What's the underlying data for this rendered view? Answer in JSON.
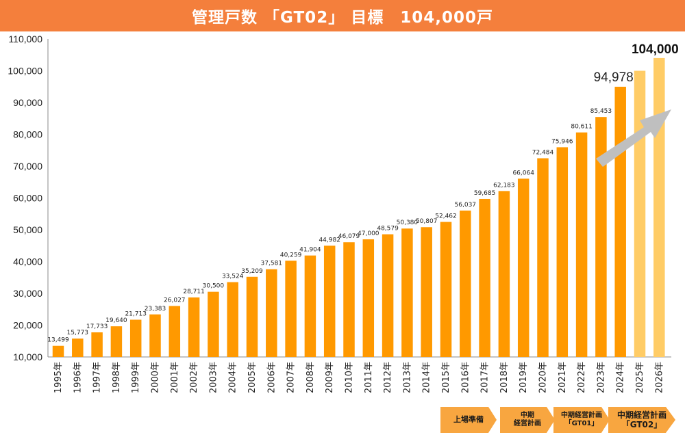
{
  "header": {
    "title": "管理戸数 「GT02」 目標　104,000戸"
  },
  "colors": {
    "title_bg": "#F47F3C",
    "bar_actual": "#FF9900",
    "bar_target": "#FFCC66",
    "arrow": "#BFBFBF",
    "phase_arrow": "#F8A640"
  },
  "chart_data": {
    "type": "bar",
    "title": "",
    "xlabel": "",
    "ylabel": "",
    "ylim": [
      10000,
      110000
    ],
    "yticks": [
      "10,000",
      "20,000",
      "30,000",
      "40,000",
      "50,000",
      "60,000",
      "70,000",
      "80,000",
      "90,000",
      "100,000",
      "110,000"
    ],
    "grid": false,
    "categories": [
      "1995年",
      "1996年",
      "1997年",
      "1998年",
      "1999年",
      "2000年",
      "2001年",
      "2002年",
      "2003年",
      "2004年",
      "2005年",
      "2006年",
      "2007年",
      "2008年",
      "2009年",
      "2010年",
      "2011年",
      "2012年",
      "2013年",
      "2014年",
      "2015年",
      "2016年",
      "2017年",
      "2018年",
      "2019年",
      "2020年",
      "2021年",
      "2022年",
      "2023年",
      "2024年",
      "2025年",
      "2026年"
    ],
    "values": [
      13499,
      15773,
      17733,
      19640,
      21713,
      23383,
      26027,
      28711,
      30500,
      33524,
      35209,
      37581,
      40259,
      41904,
      44982,
      46079,
      47000,
      48579,
      50380,
      50807,
      52462,
      56037,
      59685,
      62183,
      66064,
      72484,
      75946,
      80611,
      85453,
      94978,
      100000,
      104000
    ],
    "labels": [
      "13,499",
      "15,773",
      "17,733",
      "19,640",
      "21,713",
      "23,383",
      "26,027",
      "28,711",
      "30,500",
      "33,524",
      "35,209",
      "37,581",
      "40,259",
      "41,904",
      "44,982",
      "46,079",
      "47,000",
      "48,579",
      "50,380",
      "50,807",
      "52,462",
      "56,037",
      "59,685",
      "62,183",
      "66,064",
      "72,484",
      "75,946",
      "80,611",
      "85,453",
      "94,978",
      "",
      "104,000"
    ],
    "bar_kind": [
      "actual",
      "actual",
      "actual",
      "actual",
      "actual",
      "actual",
      "actual",
      "actual",
      "actual",
      "actual",
      "actual",
      "actual",
      "actual",
      "actual",
      "actual",
      "actual",
      "actual",
      "actual",
      "actual",
      "actual",
      "actual",
      "actual",
      "actual",
      "actual",
      "actual",
      "actual",
      "actual",
      "actual",
      "actual",
      "actual",
      "target",
      "target"
    ],
    "annotations": {
      "trend_arrow": true
    }
  },
  "phases": [
    {
      "label": "上場準備"
    },
    {
      "label": "中期\n経営計画"
    },
    {
      "label": "中期経営計画\n「GT01」"
    },
    {
      "label": "中期経営計画\n「GT02」"
    }
  ]
}
